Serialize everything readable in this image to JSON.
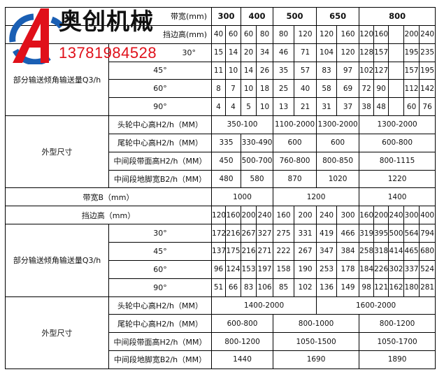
{
  "logo": {
    "brand": "奥创机械",
    "phone": "13781984528",
    "colors": {
      "red": "#e0101a",
      "blue": "#1a5fb4"
    }
  },
  "top": {
    "belt_width_label": "带宽(mm)",
    "widths": [
      "300",
      "400",
      "500",
      "650",
      "800"
    ],
    "edge_label": "挡边高(mm)",
    "edges": [
      "40",
      "60",
      "60",
      "80",
      "80",
      "120",
      "120",
      "160",
      "120",
      "160",
      "",
      "200",
      "240"
    ],
    "capacity_label": "部分输送倾角输送量Q3/h",
    "angles": [
      {
        "angle": "30°",
        "values": [
          "15",
          "14",
          "20",
          "34",
          "46",
          "71",
          "104",
          "120",
          "128",
          "157",
          "",
          "195",
          "235"
        ]
      },
      {
        "angle": "45°",
        "values": [
          "11",
          "10",
          "14",
          "26",
          "35",
          "57",
          "83",
          "97",
          "102",
          "127",
          "",
          "157",
          "195"
        ]
      },
      {
        "angle": "60°",
        "values": [
          "8",
          "7",
          "10",
          "18",
          "25",
          "40",
          "58",
          "69",
          "72",
          "90",
          "",
          "112",
          "142"
        ]
      },
      {
        "angle": "90°",
        "values": [
          "4",
          "4",
          "5",
          "10",
          "13",
          "21",
          "31",
          "37",
          "38",
          "48",
          "",
          "60",
          "76"
        ]
      }
    ],
    "dims_label": "外型尺寸",
    "dims": [
      {
        "label": "头轮中心高H2/h（MM）",
        "cells": [
          [
            "350-100",
            4
          ],
          [
            "1100-2000",
            2
          ],
          [
            "1300-2000",
            2
          ],
          [
            "1300-2000",
            5
          ]
        ]
      },
      {
        "label": "尾轮中心高H2/h（MM）",
        "cells": [
          [
            "335",
            2
          ],
          [
            "330-490",
            2
          ],
          [
            "600",
            2
          ],
          [
            "600",
            2
          ],
          [
            "600-800",
            5
          ]
        ]
      },
      {
        "label": "中间段带面高H2/h（MM）",
        "cells": [
          [
            "450",
            2
          ],
          [
            "500-700",
            2
          ],
          [
            "760-800",
            2
          ],
          [
            "800-850",
            2
          ],
          [
            "800-1115",
            5
          ]
        ]
      },
      {
        "label": "中间段地脚宽B2/h（MM）",
        "cells": [
          [
            "480",
            2
          ],
          [
            "580",
            2
          ],
          [
            "870",
            2
          ],
          [
            "1020",
            2
          ],
          [
            "1220",
            5
          ]
        ]
      }
    ]
  },
  "bottom": {
    "belt_width_label": "带宽B（mm）",
    "widths": [
      [
        "1000",
        4
      ],
      [
        "1200",
        4
      ],
      [
        "1400",
        5
      ]
    ],
    "edge_label": "挡边高（mm）",
    "edges": [
      "120",
      "160",
      "200",
      "240",
      "160",
      "200",
      "240",
      "300",
      "160",
      "200",
      "240",
      "300",
      "400"
    ],
    "capacity_label": "部分输送倾角输送量Q3/h",
    "angles": [
      {
        "angle": "30°",
        "values": [
          "172",
          "216",
          "267",
          "327",
          "275",
          "331",
          "419",
          "466",
          "319",
          "395",
          "500",
          "564",
          "794"
        ]
      },
      {
        "angle": "45°",
        "values": [
          "137",
          "175",
          "216",
          "271",
          "222",
          "267",
          "347",
          "384",
          "258",
          "318",
          "414",
          "465",
          "680"
        ]
      },
      {
        "angle": "60°",
        "values": [
          "96",
          "124",
          "153",
          "197",
          "158",
          "190",
          "253",
          "178",
          "184",
          "226",
          "302",
          "337",
          "524"
        ]
      },
      {
        "angle": "90°",
        "values": [
          "51",
          "66",
          "83",
          "106",
          "85",
          "102",
          "136",
          "149",
          "98",
          "121",
          "162",
          "180",
          "281"
        ]
      }
    ],
    "dims_label": "外型尺寸",
    "dims": [
      {
        "label": "头轮中心高H2/h（MM）",
        "cells": [
          [
            "1400-2000",
            6
          ],
          [
            "1600-2000",
            7
          ]
        ]
      },
      {
        "label": "尾轮中心高H2/h（MM）",
        "cells": [
          [
            "600-800",
            4
          ],
          [
            "800-1000",
            4
          ],
          [
            "800-1200",
            5
          ]
        ]
      },
      {
        "label": "中间段带面高H2/h（MM）",
        "cells": [
          [
            "800-1200",
            4
          ],
          [
            "1050-1500",
            4
          ],
          [
            "1050-1700",
            5
          ]
        ]
      },
      {
        "label": "中间段地脚宽B2/h（MM）",
        "cells": [
          [
            "1440",
            4
          ],
          [
            "1690",
            4
          ],
          [
            "1890",
            5
          ]
        ]
      }
    ]
  }
}
